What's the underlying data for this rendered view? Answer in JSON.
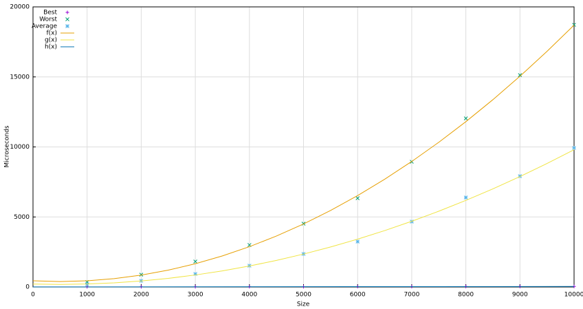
{
  "chart_data": {
    "type": "scatter-line",
    "xlabel": "Size",
    "ylabel": "Microseconds",
    "xlim": [
      0,
      10000
    ],
    "xticks": [
      0,
      1000,
      2000,
      3000,
      4000,
      5000,
      6000,
      7000,
      8000,
      9000,
      10000
    ],
    "ylim": [
      0,
      20000
    ],
    "yticks": [
      0,
      5000,
      10000,
      15000,
      20000
    ],
    "grid": true,
    "legend": "top-left",
    "series": [
      {
        "name": "Best",
        "color": "#9400d3",
        "marker": "plus",
        "x": [
          1000,
          2000,
          3000,
          4000,
          5000,
          6000,
          7000,
          8000,
          9000,
          10000
        ],
        "values": [
          10,
          15,
          15,
          20,
          20,
          25,
          25,
          30,
          30,
          35
        ]
      },
      {
        "name": "Worst",
        "color": "#009e73",
        "marker": "cross",
        "x": [
          1000,
          2000,
          3000,
          4000,
          5000,
          6000,
          7000,
          8000,
          9000,
          10000
        ],
        "values": [
          350,
          880,
          1820,
          3000,
          4520,
          6340,
          8940,
          12040,
          15130,
          18720
        ]
      },
      {
        "name": "Average",
        "color": "#56b4e9",
        "marker": "star",
        "x": [
          1000,
          2000,
          3000,
          4000,
          5000,
          6000,
          7000,
          8000,
          9000,
          10000
        ],
        "values": [
          200,
          440,
          930,
          1520,
          2360,
          3240,
          4670,
          6390,
          7910,
          9930
        ]
      },
      {
        "name": "f(x)",
        "color": "#e69f00",
        "marker": "line",
        "x": [
          0,
          500,
          1000,
          1500,
          2000,
          2500,
          3000,
          3500,
          4000,
          4500,
          5000,
          5500,
          6000,
          6500,
          7000,
          7500,
          8000,
          8500,
          9000,
          9500,
          10000
        ],
        "values": [
          440,
          390,
          441,
          593,
          847,
          1203,
          1659,
          2217,
          2877,
          3638,
          4500,
          5464,
          6529,
          7695,
          8963,
          10333,
          11803,
          13375,
          15049,
          16824,
          18700
        ]
      },
      {
        "name": "g(x)",
        "color": "#f0e442",
        "marker": "line",
        "x": [
          0,
          500,
          1000,
          1500,
          2000,
          2500,
          3000,
          3500,
          4000,
          4500,
          5000,
          5500,
          6000,
          6500,
          7000,
          7500,
          8000,
          8500,
          9000,
          9500,
          10000
        ],
        "values": [
          210,
          185,
          213,
          294,
          429,
          616,
          857,
          1150,
          1497,
          1897,
          2350,
          2856,
          3415,
          4027,
          4693,
          5411,
          6183,
          7007,
          7885,
          8816,
          9800
        ]
      },
      {
        "name": "h(x)",
        "color": "#0072b2",
        "marker": "line",
        "x": [
          0,
          10000
        ],
        "values": [
          5,
          35
        ]
      }
    ]
  }
}
